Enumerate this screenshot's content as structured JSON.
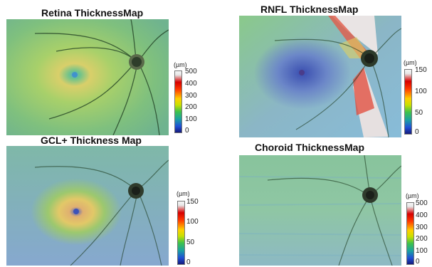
{
  "panels": {
    "retina": {
      "title": "Retina ThicknessMap",
      "unit": "(µm)",
      "ticks": [
        "500",
        "400",
        "300",
        "200",
        "100",
        "0"
      ]
    },
    "rnfl": {
      "title": "RNFL ThicknessMap",
      "unit": "(µm)",
      "ticks": [
        "150",
        "100",
        "50",
        "0"
      ]
    },
    "gcl": {
      "title": "GCL+ Thickness Map",
      "unit": "(µm)",
      "ticks": [
        "150",
        "100",
        "50",
        "0"
      ]
    },
    "choroid": {
      "title": "Choroid ThicknessMap",
      "unit": "(µm)",
      "ticks": [
        "500",
        "400",
        "300",
        "200",
        "100",
        "0"
      ]
    }
  }
}
